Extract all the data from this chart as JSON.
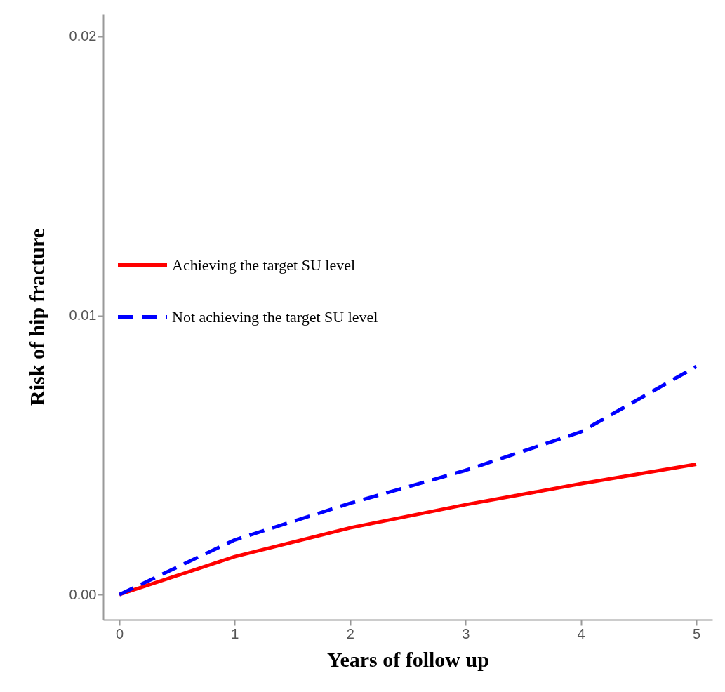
{
  "chart_data": {
    "type": "line",
    "xlabel": "Years of follow up",
    "ylabel": "Risk of hip fracture",
    "x": [
      0,
      1,
      2,
      3,
      4,
      5
    ],
    "series": [
      {
        "name": "Achieving the target SU level",
        "color": "#ff0000",
        "line_style": "solid",
        "values": [
          0,
          0.00136,
          0.00239,
          0.00322,
          0.00397,
          0.00467
        ]
      },
      {
        "name": "Not achieving the target SU level",
        "color": "#0000ff",
        "line_style": "dashed",
        "values": [
          0,
          0.00196,
          0.00327,
          0.00445,
          0.00583,
          0.00817
        ]
      }
    ],
    "xlim": [
      -0.14,
      5.14
    ],
    "ylim": [
      -0.0009,
      0.0208
    ],
    "xticks": [
      0,
      1,
      2,
      3,
      4,
      5
    ],
    "yticks": [
      {
        "value": 0,
        "label": "0.00"
      },
      0.01,
      0.02
    ],
    "grid": false,
    "legend": "left",
    "marker": "none"
  }
}
